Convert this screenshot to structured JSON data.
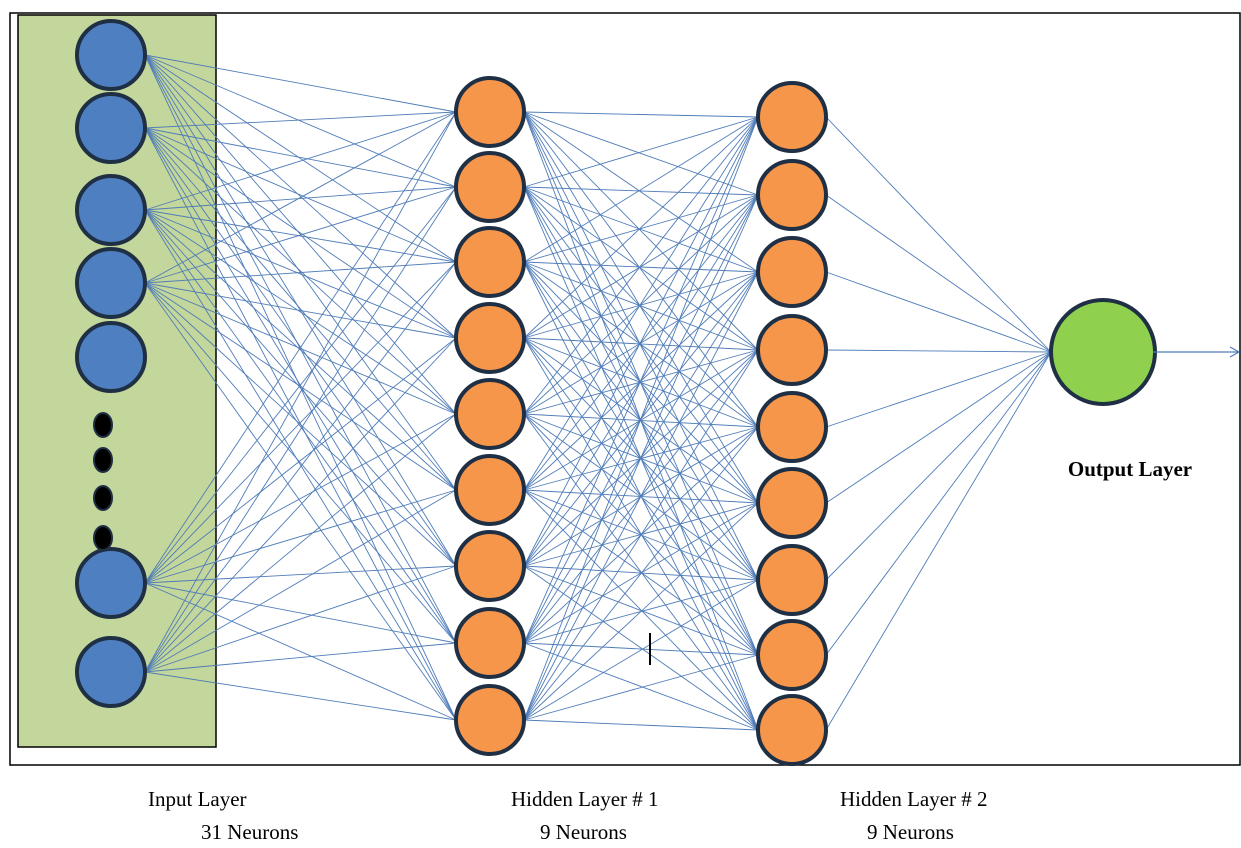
{
  "output_label": "Output Layer",
  "captions": {
    "input_layer": "Input Layer",
    "input_neurons": "31 Neurons",
    "hidden1_layer": "Hidden Layer # 1",
    "hidden1_neurons": "9 Neurons",
    "hidden2_layer": "Hidden Layer # 2",
    "hidden2_neurons": "9 Neurons"
  },
  "colors": {
    "input_node": "#4e7fc0",
    "hidden_node": "#f5964a",
    "output_node": "#8fd14f",
    "node_border": "#1f2f44",
    "edge": "#4f7cb8",
    "input_panel": "#c3d69b",
    "frame": "#000000"
  }
}
